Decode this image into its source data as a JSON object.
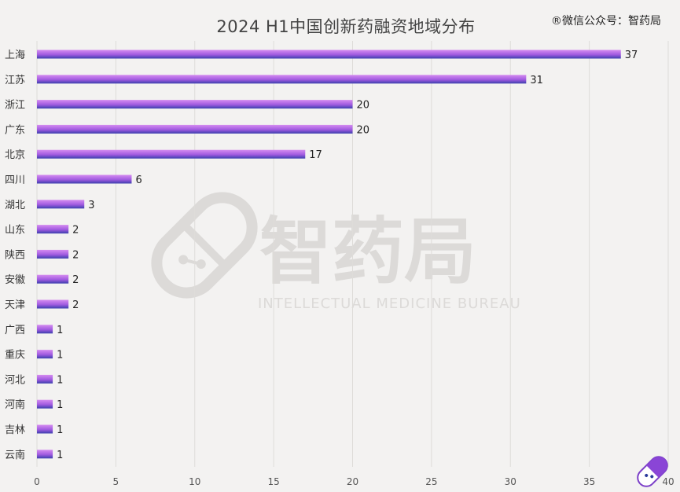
{
  "title": "2024 H1中国创新药融资地域分布",
  "credit": "®微信公众号：智药局",
  "watermark": {
    "cn": "智药局",
    "en": "INTELLECTUAL MEDICINE BUREAU"
  },
  "colors": {
    "bar_top": "#d58cf0",
    "bar_mid": "#a15be0",
    "bar_bottom": "#3b3fae",
    "grid": "#dedcd9"
  },
  "chart_data": {
    "type": "bar",
    "orientation": "horizontal",
    "title": "2024 H1中国创新药融资地域分布",
    "categories": [
      "上海",
      "江苏",
      "浙江",
      "广东",
      "北京",
      "四川",
      "湖北",
      "山东",
      "陕西",
      "安徽",
      "天津",
      "广西",
      "重庆",
      "河北",
      "河南",
      "吉林",
      "云南"
    ],
    "values": [
      37,
      31,
      20,
      20,
      17,
      6,
      3,
      2,
      2,
      2,
      2,
      1,
      1,
      1,
      1,
      1,
      1
    ],
    "xlim": [
      0,
      40
    ],
    "xticks": [
      0,
      5,
      10,
      15,
      20,
      25,
      30,
      35,
      40
    ],
    "grid": true,
    "data_labels": true
  }
}
